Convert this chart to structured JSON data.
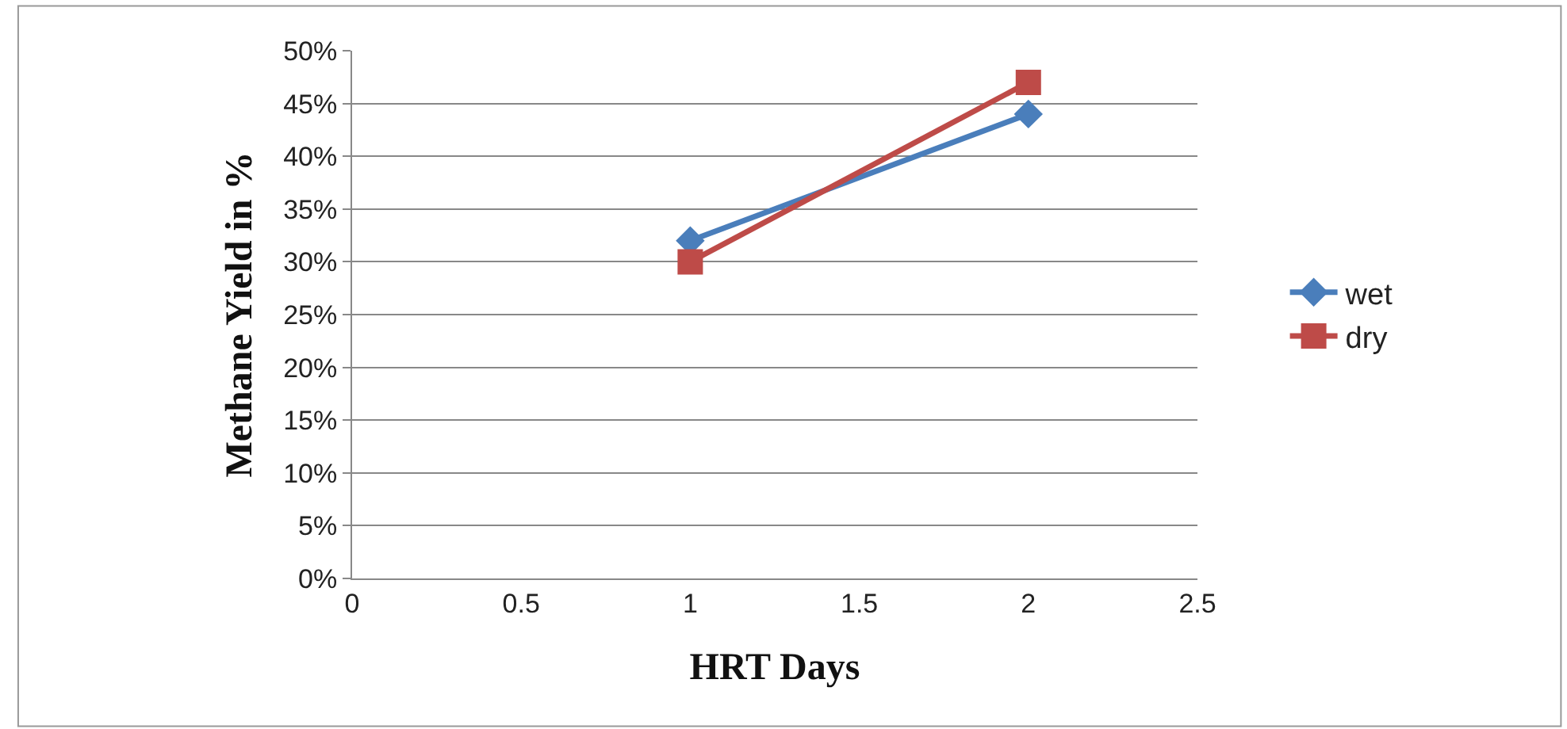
{
  "chart_data": {
    "type": "line",
    "xlabel": "HRT Days",
    "ylabel": "Methane Yield in %",
    "series": [
      {
        "name": "wet",
        "color": "#4a7ebb",
        "values": [
          32,
          44
        ],
        "marker": "diamond"
      },
      {
        "name": "dry",
        "color": "#be4b48",
        "values": [
          30,
          47
        ],
        "marker": "square"
      }
    ],
    "x": [
      1,
      2
    ],
    "xlim": [
      0,
      2.5
    ],
    "xticks": [
      0,
      0.5,
      1,
      1.5,
      2,
      2.5
    ],
    "ylim": [
      0,
      50
    ],
    "yticks": [
      {
        "value": 0,
        "label": "0%"
      },
      {
        "value": 5,
        "label": "5%"
      },
      {
        "value": 10,
        "label": "10%"
      },
      {
        "value": 15,
        "label": "15%"
      },
      {
        "value": 20,
        "label": "20%"
      },
      {
        "value": 25,
        "label": "25%"
      },
      {
        "value": 30,
        "label": "30%"
      },
      {
        "value": 35,
        "label": "35%"
      },
      {
        "value": 40,
        "label": "40%"
      },
      {
        "value": 45,
        "label": "45%"
      },
      {
        "value": 50,
        "label": "50%"
      }
    ],
    "grid": "y",
    "legend": "right",
    "line_style": "solid"
  }
}
